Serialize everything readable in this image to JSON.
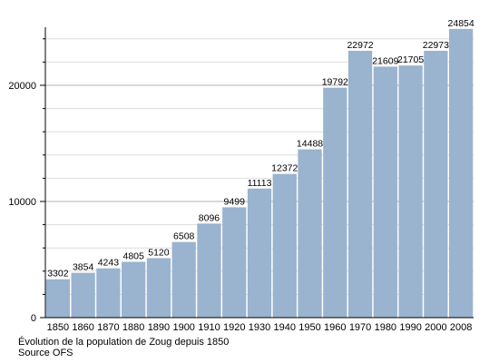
{
  "chart_data": {
    "type": "bar",
    "categories": [
      "1850",
      "1860",
      "1870",
      "1880",
      "1890",
      "1900",
      "1910",
      "1920",
      "1930",
      "1940",
      "1950",
      "1960",
      "1970",
      "1980",
      "1990",
      "2000",
      "2008"
    ],
    "values": [
      3302,
      3854,
      4243,
      4805,
      5120,
      6508,
      8096,
      9499,
      11113,
      12372,
      14488,
      19792,
      22972,
      21609,
      21705,
      22973,
      24854
    ],
    "value_labels": [
      "3302",
      "3854",
      "4243",
      "4805",
      "5120",
      "6508",
      "8096",
      "9499",
      "11113",
      "12372",
      "14488",
      "19792",
      "22972",
      "21609",
      "21705",
      "22973",
      "24854"
    ],
    "ylim": [
      0,
      25000
    ],
    "yticks": [
      0,
      10000,
      20000
    ],
    "ytick_labels": [
      "0",
      "10000",
      "20000"
    ],
    "grid": true,
    "bar_color": "#9ab3cf",
    "grid_color": "#c8c8c8",
    "title": "",
    "xlabel": "",
    "ylabel": ""
  },
  "caption": {
    "line1": "Évolution de la population de Zoug depuis 1850",
    "line2": "Source OFS"
  }
}
